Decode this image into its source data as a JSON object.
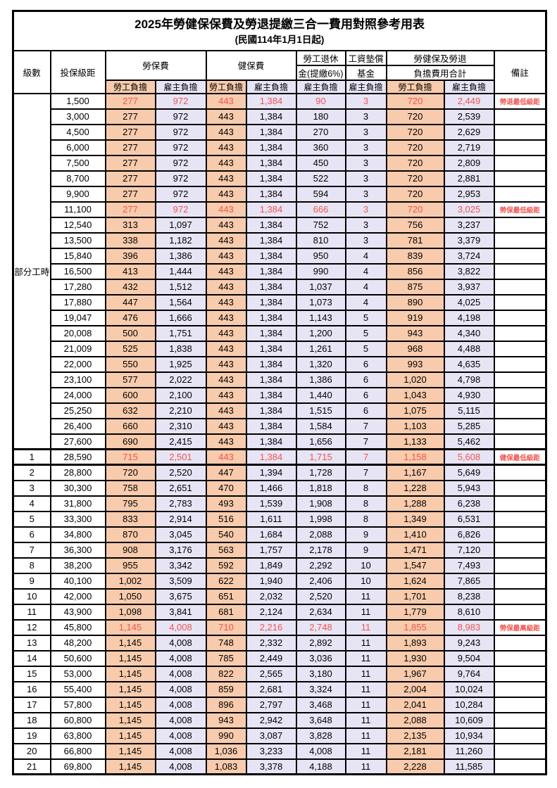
{
  "title": "2025年勞健保保費及勞退提繳三合一費用對照參考用表",
  "subtitle": "(民國114年1月1日起)",
  "colors": {
    "employee_bg": "#F8CBAD",
    "employer_bg": "#E7E5F5",
    "highlight_red": "#F2544F",
    "grid": "#000000"
  },
  "header": {
    "level": "級數",
    "bracket": "投保級距",
    "labor_ins": "勞保費",
    "health_ins": "健保費",
    "pension_line1": "勞工退休",
    "pension_line2": "金(提繳6%)",
    "wage_fund_line1": "工資墊償",
    "wage_fund_line2": "基金",
    "total_line1": "勞健保及勞退",
    "total_line2": "負擔費用合計",
    "remark": "備註",
    "employee": "勞工負擔",
    "employer": "雇主負擔"
  },
  "part_time": {
    "label": "部分工時",
    "rowspan": 23
  },
  "rows": [
    {
      "part_time_start": true,
      "bracket": "1,500",
      "values": [
        "277",
        "972",
        "443",
        "1,384",
        "90",
        "3",
        "720",
        "2,449"
      ],
      "remark": "勞退最低級距",
      "red": true
    },
    {
      "bracket": "3,000",
      "values": [
        "277",
        "972",
        "443",
        "1,384",
        "180",
        "3",
        "720",
        "2,539"
      ],
      "remark": ""
    },
    {
      "bracket": "4,500",
      "values": [
        "277",
        "972",
        "443",
        "1,384",
        "270",
        "3",
        "720",
        "2,629"
      ],
      "remark": ""
    },
    {
      "bracket": "6,000",
      "values": [
        "277",
        "972",
        "443",
        "1,384",
        "360",
        "3",
        "720",
        "2,719"
      ],
      "remark": ""
    },
    {
      "bracket": "7,500",
      "values": [
        "277",
        "972",
        "443",
        "1,384",
        "450",
        "3",
        "720",
        "2,809"
      ],
      "remark": ""
    },
    {
      "bracket": "8,700",
      "values": [
        "277",
        "972",
        "443",
        "1,384",
        "522",
        "3",
        "720",
        "2,881"
      ],
      "remark": ""
    },
    {
      "bracket": "9,900",
      "values": [
        "277",
        "972",
        "443",
        "1,384",
        "594",
        "3",
        "720",
        "2,953"
      ],
      "remark": ""
    },
    {
      "bracket": "11,100",
      "values": [
        "277",
        "972",
        "443",
        "1,384",
        "666",
        "3",
        "720",
        "3,025"
      ],
      "remark": "勞保最低級距",
      "red": true
    },
    {
      "bracket": "12,540",
      "values": [
        "313",
        "1,097",
        "443",
        "1,384",
        "752",
        "3",
        "756",
        "3,237"
      ],
      "remark": ""
    },
    {
      "bracket": "13,500",
      "values": [
        "338",
        "1,182",
        "443",
        "1,384",
        "810",
        "3",
        "781",
        "3,379"
      ],
      "remark": ""
    },
    {
      "bracket": "15,840",
      "values": [
        "396",
        "1,386",
        "443",
        "1,384",
        "950",
        "4",
        "839",
        "3,724"
      ],
      "remark": ""
    },
    {
      "bracket": "16,500",
      "values": [
        "413",
        "1,444",
        "443",
        "1,384",
        "990",
        "4",
        "856",
        "3,822"
      ],
      "remark": ""
    },
    {
      "bracket": "17,280",
      "values": [
        "432",
        "1,512",
        "443",
        "1,384",
        "1,037",
        "4",
        "875",
        "3,937"
      ],
      "remark": ""
    },
    {
      "bracket": "17,880",
      "values": [
        "447",
        "1,564",
        "443",
        "1,384",
        "1,073",
        "4",
        "890",
        "4,025"
      ],
      "remark": ""
    },
    {
      "bracket": "19,047",
      "values": [
        "476",
        "1,666",
        "443",
        "1,384",
        "1,143",
        "5",
        "919",
        "4,198"
      ],
      "remark": ""
    },
    {
      "bracket": "20,008",
      "values": [
        "500",
        "1,751",
        "443",
        "1,384",
        "1,200",
        "5",
        "943",
        "4,340"
      ],
      "remark": ""
    },
    {
      "bracket": "21,009",
      "values": [
        "525",
        "1,838",
        "443",
        "1,384",
        "1,261",
        "5",
        "968",
        "4,488"
      ],
      "remark": ""
    },
    {
      "bracket": "22,000",
      "values": [
        "550",
        "1,925",
        "443",
        "1,384",
        "1,320",
        "6",
        "993",
        "4,635"
      ],
      "remark": ""
    },
    {
      "bracket": "23,100",
      "values": [
        "577",
        "2,022",
        "443",
        "1,384",
        "1,386",
        "6",
        "1,020",
        "4,798"
      ],
      "remark": ""
    },
    {
      "bracket": "24,000",
      "values": [
        "600",
        "2,100",
        "443",
        "1,384",
        "1,440",
        "6",
        "1,043",
        "4,930"
      ],
      "remark": ""
    },
    {
      "bracket": "25,250",
      "values": [
        "632",
        "2,210",
        "443",
        "1,384",
        "1,515",
        "6",
        "1,075",
        "5,115"
      ],
      "remark": ""
    },
    {
      "bracket": "26,400",
      "values": [
        "660",
        "2,310",
        "443",
        "1,384",
        "1,584",
        "7",
        "1,103",
        "5,285"
      ],
      "remark": ""
    },
    {
      "bracket": "27,600",
      "values": [
        "690",
        "2,415",
        "443",
        "1,384",
        "1,656",
        "7",
        "1,133",
        "5,462"
      ],
      "remark": ""
    },
    {
      "level": "1",
      "bracket": "28,590",
      "values": [
        "715",
        "2,501",
        "443",
        "1,384",
        "1,715",
        "7",
        "1,158",
        "5,608"
      ],
      "remark": "健保最低級距",
      "red": true,
      "thick": true
    },
    {
      "level": "2",
      "bracket": "28,800",
      "values": [
        "720",
        "2,520",
        "447",
        "1,394",
        "1,728",
        "7",
        "1,167",
        "5,649"
      ],
      "remark": ""
    },
    {
      "level": "3",
      "bracket": "30,300",
      "values": [
        "758",
        "2,651",
        "470",
        "1,466",
        "1,818",
        "8",
        "1,228",
        "5,943"
      ],
      "remark": ""
    },
    {
      "level": "4",
      "bracket": "31,800",
      "values": [
        "795",
        "2,783",
        "493",
        "1,539",
        "1,908",
        "8",
        "1,288",
        "6,238"
      ],
      "remark": ""
    },
    {
      "level": "5",
      "bracket": "33,300",
      "values": [
        "833",
        "2,914",
        "516",
        "1,611",
        "1,998",
        "8",
        "1,349",
        "6,531"
      ],
      "remark": ""
    },
    {
      "level": "6",
      "bracket": "34,800",
      "values": [
        "870",
        "3,045",
        "540",
        "1,684",
        "2,088",
        "9",
        "1,410",
        "6,826"
      ],
      "remark": ""
    },
    {
      "level": "7",
      "bracket": "36,300",
      "values": [
        "908",
        "3,176",
        "563",
        "1,757",
        "2,178",
        "9",
        "1,471",
        "7,120"
      ],
      "remark": ""
    },
    {
      "level": "8",
      "bracket": "38,200",
      "values": [
        "955",
        "3,342",
        "592",
        "1,849",
        "2,292",
        "10",
        "1,547",
        "7,493"
      ],
      "remark": ""
    },
    {
      "level": "9",
      "bracket": "40,100",
      "values": [
        "1,002",
        "3,509",
        "622",
        "1,940",
        "2,406",
        "10",
        "1,624",
        "7,865"
      ],
      "remark": ""
    },
    {
      "level": "10",
      "bracket": "42,000",
      "values": [
        "1,050",
        "3,675",
        "651",
        "2,032",
        "2,520",
        "11",
        "1,701",
        "8,238"
      ],
      "remark": ""
    },
    {
      "level": "11",
      "bracket": "43,900",
      "values": [
        "1,098",
        "3,841",
        "681",
        "2,124",
        "2,634",
        "11",
        "1,779",
        "8,610"
      ],
      "remark": ""
    },
    {
      "level": "12",
      "bracket": "45,800",
      "values": [
        "1,145",
        "4,008",
        "710",
        "2,216",
        "2,748",
        "11",
        "1,855",
        "8,983"
      ],
      "remark": "勞保最高級距",
      "red": true
    },
    {
      "level": "13",
      "bracket": "48,200",
      "values": [
        "1,145",
        "4,008",
        "748",
        "2,332",
        "2,892",
        "11",
        "1,893",
        "9,243"
      ],
      "remark": ""
    },
    {
      "level": "14",
      "bracket": "50,600",
      "values": [
        "1,145",
        "4,008",
        "785",
        "2,449",
        "3,036",
        "11",
        "1,930",
        "9,504"
      ],
      "remark": ""
    },
    {
      "level": "15",
      "bracket": "53,000",
      "values": [
        "1,145",
        "4,008",
        "822",
        "2,565",
        "3,180",
        "11",
        "1,967",
        "9,764"
      ],
      "remark": ""
    },
    {
      "level": "16",
      "bracket": "55,400",
      "values": [
        "1,145",
        "4,008",
        "859",
        "2,681",
        "3,324",
        "11",
        "2,004",
        "10,024"
      ],
      "remark": ""
    },
    {
      "level": "17",
      "bracket": "57,800",
      "values": [
        "1,145",
        "4,008",
        "896",
        "2,797",
        "3,468",
        "11",
        "2,041",
        "10,284"
      ],
      "remark": ""
    },
    {
      "level": "18",
      "bracket": "60,800",
      "values": [
        "1,145",
        "4,008",
        "943",
        "2,942",
        "3,648",
        "11",
        "2,088",
        "10,609"
      ],
      "remark": ""
    },
    {
      "level": "19",
      "bracket": "63,800",
      "values": [
        "1,145",
        "4,008",
        "990",
        "3,087",
        "3,828",
        "11",
        "2,135",
        "10,934"
      ],
      "remark": ""
    },
    {
      "level": "20",
      "bracket": "66,800",
      "values": [
        "1,145",
        "4,008",
        "1,036",
        "3,233",
        "4,008",
        "11",
        "2,181",
        "11,260"
      ],
      "remark": ""
    },
    {
      "level": "21",
      "bracket": "69,800",
      "values": [
        "1,145",
        "4,008",
        "1,083",
        "3,378",
        "4,188",
        "11",
        "2,228",
        "11,585"
      ],
      "remark": ""
    }
  ]
}
